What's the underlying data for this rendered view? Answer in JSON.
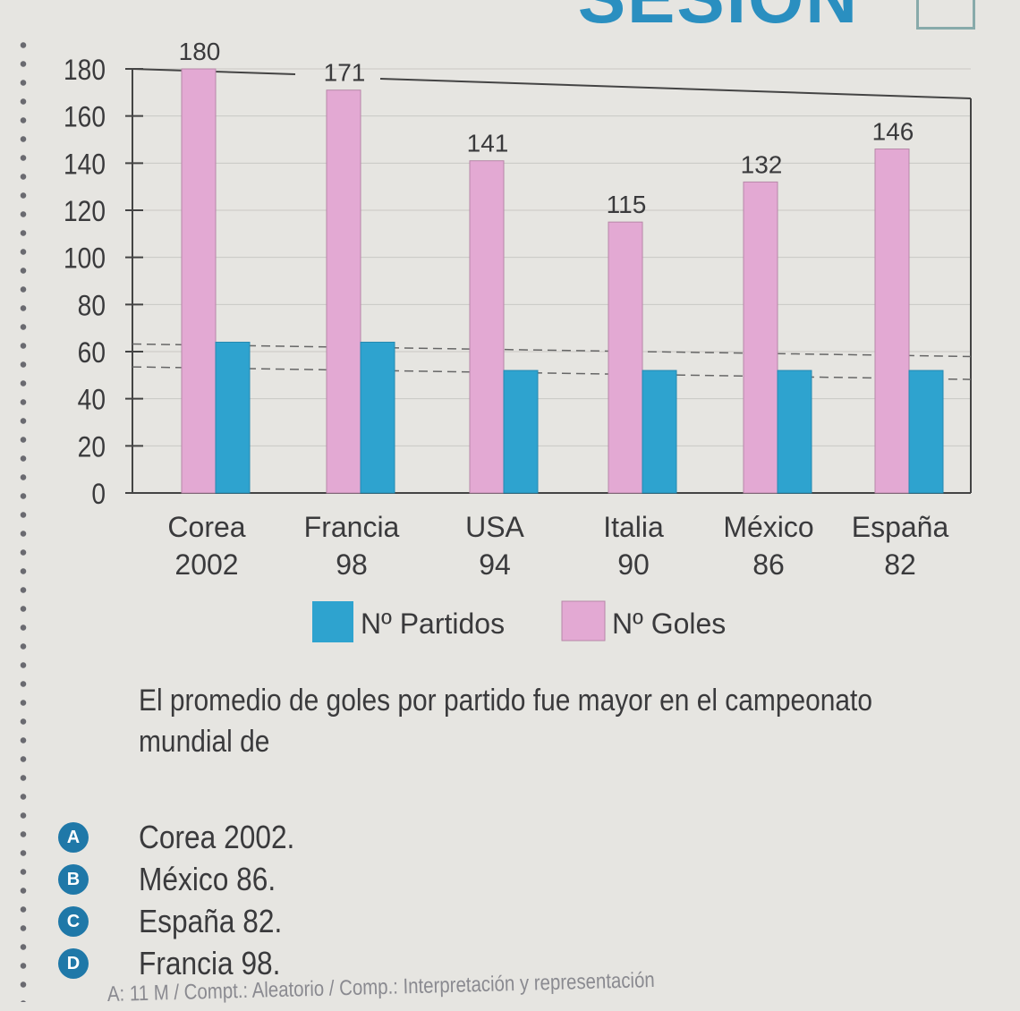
{
  "header_partial": "SESIÓN",
  "chart_data": {
    "type": "bar",
    "categories": [
      [
        "Corea",
        "2002"
      ],
      [
        "Francia",
        "98"
      ],
      [
        "USA",
        "94"
      ],
      [
        "Italia",
        "90"
      ],
      [
        "México",
        "86"
      ],
      [
        "España",
        "82"
      ]
    ],
    "series": [
      {
        "name": "Nº Partidos",
        "color": "#2ea3cf",
        "values": [
          64,
          64,
          52,
          52,
          52,
          52
        ]
      },
      {
        "name": "Nº Goles",
        "color": "#e3a9d3",
        "values": [
          180,
          171,
          141,
          115,
          132,
          146
        ]
      }
    ],
    "data_labels": [
      "180",
      "171",
      "141",
      "115",
      "132",
      "146"
    ],
    "yticks": [
      "0",
      "20",
      "40",
      "60",
      "80",
      "100",
      "120",
      "140",
      "160",
      "180"
    ],
    "ylim": [
      0,
      180
    ],
    "legend": "bottom"
  },
  "question": "El promedio de goles por partido fue mayor en el campeonato mundial de",
  "options": [
    {
      "letter": "A",
      "text": "Corea 2002."
    },
    {
      "letter": "B",
      "text": "México 86."
    },
    {
      "letter": "C",
      "text": "España 82."
    },
    {
      "letter": "D",
      "text": "Francia 98."
    }
  ],
  "footer": "A: 11 M / Compt.: Aleatorio / Comp.: Interpretación y representación"
}
